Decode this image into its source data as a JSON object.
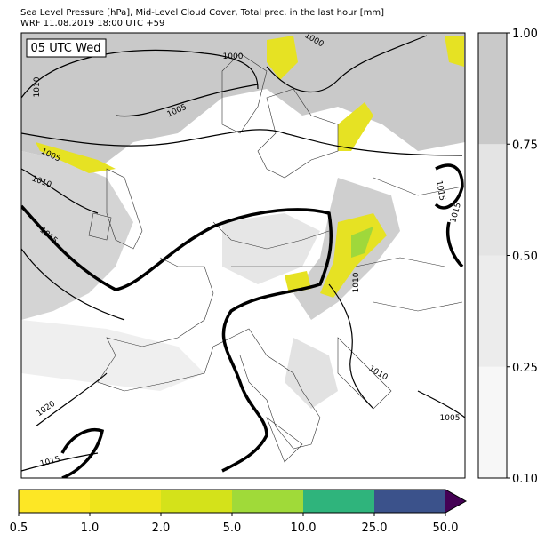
{
  "header": {
    "line1": "Sea Level Pressure [hPa], Mid-Level Cloud Cover, Total prec. in the last hour [mm]",
    "line2": "WRF 11.08.2019 18:00 UTC +59"
  },
  "map": {
    "time_label": "05 UTC Wed",
    "isobar_labels": [
      "1000",
      "1000",
      "1005",
      "1010",
      "1005",
      "1010",
      "1015",
      "1015",
      "1015",
      "1010",
      "1010",
      "1020",
      "1015",
      "1005"
    ]
  },
  "cloud_colorbar": {
    "ticks": [
      "0.10",
      "0.25",
      "0.50",
      "0.75",
      "1.00"
    ]
  },
  "precip_colorbar": {
    "ticks": [
      "0.5",
      "1.0",
      "2.0",
      "5.0",
      "10.0",
      "25.0",
      "50.0"
    ]
  }
}
